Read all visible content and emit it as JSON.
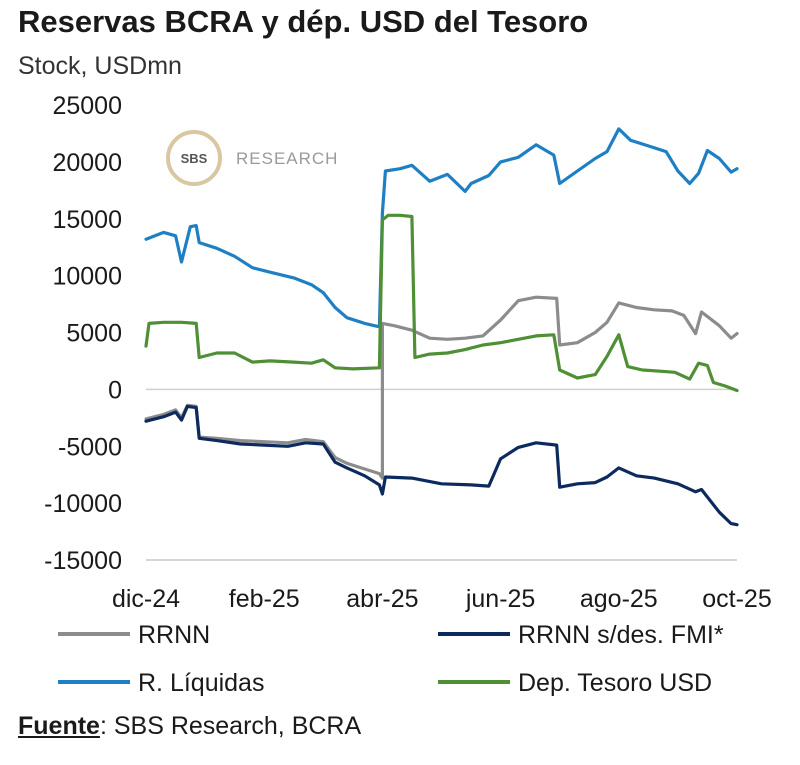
{
  "header": {
    "title": "Reservas BCRA y dép. USD del Tesoro",
    "subtitle": "Stock, USDmn"
  },
  "watermark": {
    "logo": "SBS",
    "text": "RESEARCH"
  },
  "source": {
    "label": "Fuente",
    "text": ": SBS Research, BCRA"
  },
  "chart_data": {
    "type": "line",
    "title": "Reservas BCRA y dép. USD del Tesoro",
    "subtitle": "Stock, USDmn",
    "ylim": [
      -15000,
      25000
    ],
    "yticks": [
      25000,
      20000,
      15000,
      10000,
      5000,
      0,
      -5000,
      -10000,
      -15000
    ],
    "xlim": [
      0,
      10
    ],
    "xticks": [
      {
        "x": 0,
        "label": "dic-24"
      },
      {
        "x": 2,
        "label": "feb-25"
      },
      {
        "x": 4,
        "label": "abr-25"
      },
      {
        "x": 6,
        "label": "jun-25"
      },
      {
        "x": 8,
        "label": "ago-25"
      },
      {
        "x": 10,
        "label": "oct-25"
      }
    ],
    "grid": false,
    "legend_position": "bottom",
    "series": [
      {
        "name": "RRNN",
        "color": "#8c8c8c",
        "points": [
          [
            0,
            -2600
          ],
          [
            0.3,
            -2200
          ],
          [
            0.5,
            -1800
          ],
          [
            0.6,
            -2500
          ],
          [
            0.7,
            -1400
          ],
          [
            0.85,
            -1500
          ],
          [
            0.9,
            -4200
          ],
          [
            1.2,
            -4300
          ],
          [
            1.6,
            -4500
          ],
          [
            2.0,
            -4600
          ],
          [
            2.4,
            -4700
          ],
          [
            2.7,
            -4400
          ],
          [
            3.0,
            -4600
          ],
          [
            3.2,
            -6000
          ],
          [
            3.4,
            -6500
          ],
          [
            3.7,
            -7000
          ],
          [
            3.95,
            -7400
          ],
          [
            4.0,
            -7800
          ],
          [
            4.0,
            5800
          ],
          [
            4.2,
            5600
          ],
          [
            4.5,
            5200
          ],
          [
            4.8,
            4500
          ],
          [
            5.1,
            4400
          ],
          [
            5.4,
            4500
          ],
          [
            5.7,
            4700
          ],
          [
            6.0,
            6100
          ],
          [
            6.3,
            7800
          ],
          [
            6.6,
            8100
          ],
          [
            6.95,
            8000
          ],
          [
            7.0,
            3900
          ],
          [
            7.3,
            4100
          ],
          [
            7.6,
            5000
          ],
          [
            7.8,
            5900
          ],
          [
            8.0,
            7600
          ],
          [
            8.3,
            7200
          ],
          [
            8.6,
            7000
          ],
          [
            8.9,
            6900
          ],
          [
            9.1,
            6500
          ],
          [
            9.3,
            4900
          ],
          [
            9.4,
            6800
          ],
          [
            9.7,
            5600
          ],
          [
            9.9,
            4500
          ],
          [
            10.0,
            4900
          ]
        ]
      },
      {
        "name": "RRNN s/des. FMI*",
        "color": "#0d2a5e",
        "points": [
          [
            0,
            -2800
          ],
          [
            0.3,
            -2400
          ],
          [
            0.5,
            -2000
          ],
          [
            0.6,
            -2700
          ],
          [
            0.7,
            -1500
          ],
          [
            0.85,
            -1600
          ],
          [
            0.9,
            -4300
          ],
          [
            1.2,
            -4500
          ],
          [
            1.6,
            -4800
          ],
          [
            2.0,
            -4900
          ],
          [
            2.4,
            -5000
          ],
          [
            2.7,
            -4700
          ],
          [
            3.0,
            -4800
          ],
          [
            3.2,
            -6400
          ],
          [
            3.4,
            -6900
          ],
          [
            3.7,
            -7600
          ],
          [
            3.95,
            -8400
          ],
          [
            4.0,
            -9200
          ],
          [
            4.05,
            -7700
          ],
          [
            4.5,
            -7800
          ],
          [
            5.0,
            -8300
          ],
          [
            5.5,
            -8400
          ],
          [
            5.8,
            -8500
          ],
          [
            6.0,
            -6100
          ],
          [
            6.3,
            -5100
          ],
          [
            6.6,
            -4700
          ],
          [
            6.95,
            -4900
          ],
          [
            7.0,
            -8600
          ],
          [
            7.3,
            -8300
          ],
          [
            7.6,
            -8200
          ],
          [
            7.8,
            -7700
          ],
          [
            8.0,
            -6900
          ],
          [
            8.3,
            -7600
          ],
          [
            8.6,
            -7800
          ],
          [
            9.0,
            -8300
          ],
          [
            9.3,
            -9000
          ],
          [
            9.4,
            -8800
          ],
          [
            9.7,
            -10800
          ],
          [
            9.9,
            -11800
          ],
          [
            10.0,
            -11900
          ]
        ]
      },
      {
        "name": "R. Líquidas",
        "color": "#1f7fc4",
        "points": [
          [
            0,
            13200
          ],
          [
            0.3,
            13800
          ],
          [
            0.5,
            13500
          ],
          [
            0.6,
            11200
          ],
          [
            0.75,
            14300
          ],
          [
            0.85,
            14400
          ],
          [
            0.9,
            12900
          ],
          [
            1.2,
            12400
          ],
          [
            1.5,
            11700
          ],
          [
            1.8,
            10700
          ],
          [
            2.1,
            10300
          ],
          [
            2.5,
            9800
          ],
          [
            2.8,
            9200
          ],
          [
            3.0,
            8500
          ],
          [
            3.2,
            7200
          ],
          [
            3.4,
            6300
          ],
          [
            3.7,
            5800
          ],
          [
            3.95,
            5500
          ],
          [
            4.0,
            15500
          ],
          [
            4.05,
            19200
          ],
          [
            4.3,
            19400
          ],
          [
            4.5,
            19700
          ],
          [
            4.8,
            18300
          ],
          [
            5.1,
            18900
          ],
          [
            5.4,
            17400
          ],
          [
            5.5,
            18100
          ],
          [
            5.8,
            18800
          ],
          [
            6.0,
            20000
          ],
          [
            6.3,
            20400
          ],
          [
            6.6,
            21500
          ],
          [
            6.9,
            20600
          ],
          [
            7.0,
            18100
          ],
          [
            7.3,
            19200
          ],
          [
            7.6,
            20300
          ],
          [
            7.8,
            20900
          ],
          [
            8.0,
            22900
          ],
          [
            8.2,
            21900
          ],
          [
            8.5,
            21400
          ],
          [
            8.8,
            20900
          ],
          [
            9.0,
            19200
          ],
          [
            9.2,
            18100
          ],
          [
            9.35,
            19000
          ],
          [
            9.5,
            21000
          ],
          [
            9.7,
            20300
          ],
          [
            9.9,
            19100
          ],
          [
            10.0,
            19400
          ]
        ]
      },
      {
        "name": "Dep. Tesoro USD",
        "color": "#4f8f35",
        "points": [
          [
            0,
            3800
          ],
          [
            0.05,
            5800
          ],
          [
            0.3,
            5900
          ],
          [
            0.6,
            5900
          ],
          [
            0.85,
            5800
          ],
          [
            0.9,
            2800
          ],
          [
            1.2,
            3200
          ],
          [
            1.5,
            3200
          ],
          [
            1.8,
            2400
          ],
          [
            2.1,
            2500
          ],
          [
            2.5,
            2400
          ],
          [
            2.8,
            2300
          ],
          [
            3.0,
            2600
          ],
          [
            3.2,
            1900
          ],
          [
            3.5,
            1800
          ],
          [
            3.95,
            1900
          ],
          [
            4.0,
            14900
          ],
          [
            4.1,
            15300
          ],
          [
            4.3,
            15300
          ],
          [
            4.5,
            15200
          ],
          [
            4.55,
            2800
          ],
          [
            4.8,
            3100
          ],
          [
            5.1,
            3200
          ],
          [
            5.4,
            3500
          ],
          [
            5.7,
            3900
          ],
          [
            6.0,
            4100
          ],
          [
            6.3,
            4400
          ],
          [
            6.6,
            4700
          ],
          [
            6.9,
            4800
          ],
          [
            7.0,
            1700
          ],
          [
            7.3,
            1000
          ],
          [
            7.6,
            1300
          ],
          [
            7.8,
            2900
          ],
          [
            8.0,
            4800
          ],
          [
            8.15,
            2000
          ],
          [
            8.4,
            1700
          ],
          [
            8.7,
            1600
          ],
          [
            8.95,
            1500
          ],
          [
            9.2,
            900
          ],
          [
            9.35,
            2300
          ],
          [
            9.5,
            2100
          ],
          [
            9.6,
            600
          ],
          [
            9.8,
            300
          ],
          [
            10.0,
            -100
          ]
        ]
      }
    ]
  }
}
